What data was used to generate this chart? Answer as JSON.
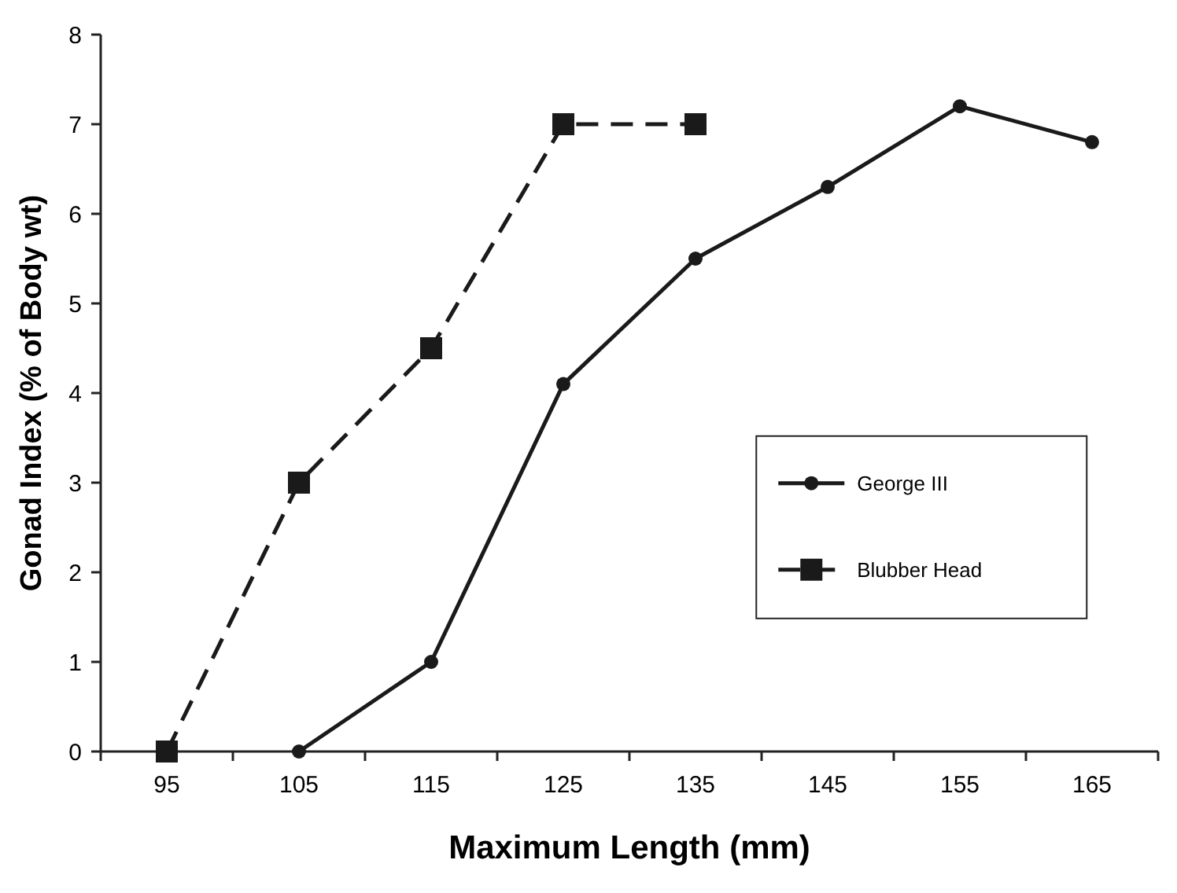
{
  "chart_data": {
    "type": "line",
    "xlabel": "Maximum Length (mm)",
    "ylabel": "Gonad Index (% of Body wt)",
    "categories": [
      "95",
      "105",
      "115",
      "125",
      "135",
      "145",
      "155",
      "165"
    ],
    "series": [
      {
        "name": "George III",
        "color": "#1a1a1a",
        "marker": "circle",
        "line_style": "solid",
        "values": [
          null,
          0,
          1,
          4.1,
          5.5,
          6.3,
          7.2,
          6.8
        ]
      },
      {
        "name": "Blubber Head",
        "color": "#1a1a1a",
        "marker": "square",
        "line_style": "dashed",
        "values": [
          0,
          3,
          4.5,
          7,
          7,
          null,
          null,
          null
        ]
      }
    ],
    "ylim": [
      0,
      8
    ],
    "yticks": [
      0,
      1,
      2,
      3,
      4,
      5,
      6,
      7,
      8
    ],
    "grid": false,
    "legend": "right"
  }
}
